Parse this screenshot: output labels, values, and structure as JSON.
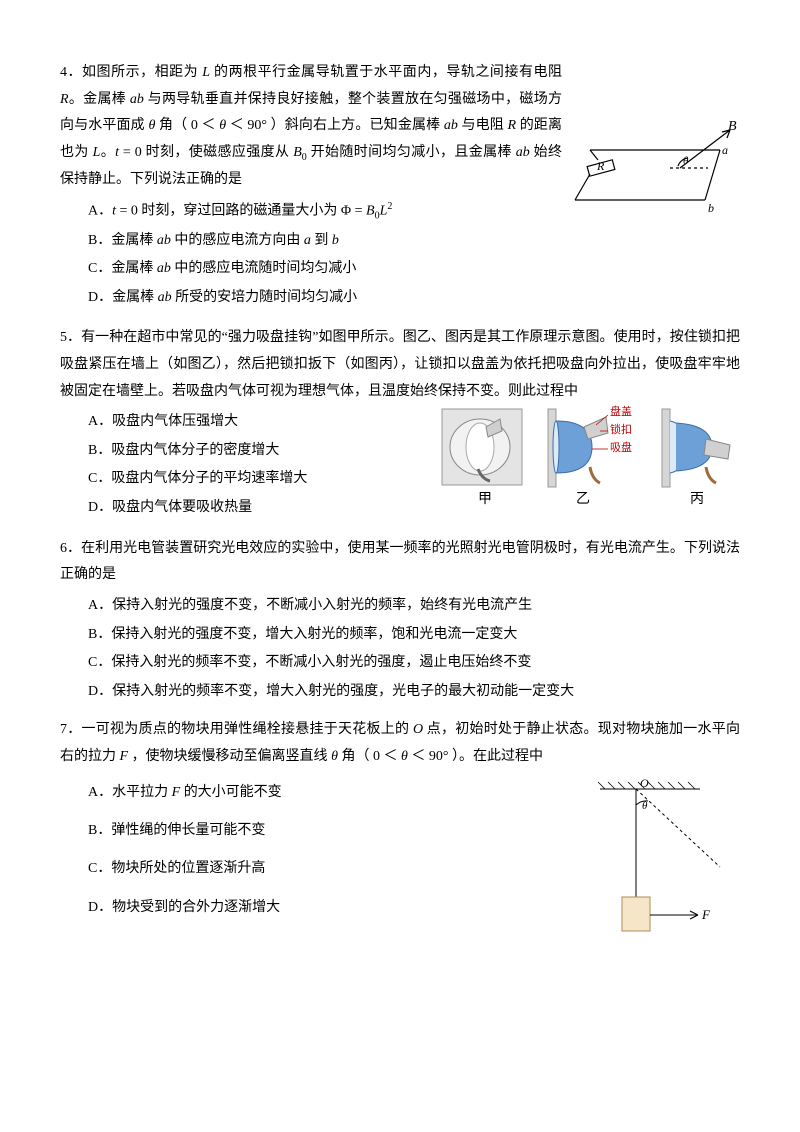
{
  "q4": {
    "num": "4．",
    "body": "如图所示，相距为 <span class='italic'>L</span> 的两根平行金属导轨置于水平面内，导轨之间接有电阻 <span class='italic'>R</span>。金属棒 <span class='italic'>ab</span> 与两导轨垂直并保持良好接触，整个装置放在匀强磁场中，磁场方向与水平面成 <span class='italic'>θ</span> 角（ 0 ＜ <span class='italic'>θ</span> ＜ 90° ）斜向右上方。已知金属棒 <span class='italic'>ab</span> 与电阻 <span class='italic'>R</span> 的距离也为 <span class='italic'>L</span>。<span class='italic'>t</span> = 0 时刻，使磁感应强度从 <span class='italic'>B</span><sub>0</sub> 开始随时间均匀减小，且金属棒 <span class='italic'>ab</span> 始终保持静止。下列说法正确的是",
    "A": "A．<span class='italic'>t</span> = 0 时刻，穿过回路的磁通量大小为 Φ = <span class='italic'>B</span><sub>0</sub><span class='italic'>L</span><sup>2</sup>",
    "B": "B．金属棒 <span class='italic'>ab</span> 中的感应电流方向由 <span class='italic'>a</span> 到 <span class='italic'>b</span>",
    "C": "C．金属棒 <span class='italic'>ab</span> 中的感应电流随时间均匀减小",
    "D": "D．金属棒 <span class='italic'>ab</span> 所受的安培力随时间均匀减小"
  },
  "q5": {
    "num": "5．",
    "body": "有一种在超市中常见的“强力吸盘挂钩”如图甲所示。图乙、图丙是其工作原理示意图。使用时，按住锁扣把吸盘紧压在墙上（如图乙），然后把锁扣扳下（如图丙），让锁扣以盘盖为依托把吸盘向外拉出，使吸盘牢牢地被固定在墙壁上。若吸盘内气体可视为理想气体，且温度始终保持不变。则此过程中",
    "A": "A．吸盘内气体压强增大",
    "B": "B．吸盘内气体分子的密度增大",
    "C": "C．吸盘内气体分子的平均速率增大",
    "D": "D．吸盘内气体要吸收热量",
    "labels": {
      "jia": "甲",
      "yi": "乙",
      "bing": "丙",
      "pan": "盘盖",
      "suo": "锁扣",
      "xi": "吸盘"
    }
  },
  "q6": {
    "num": "6．",
    "body": "在利用光电管装置研究光电效应的实验中，使用某一频率的光照射光电管阴极时，有光电流产生。下列说法正确的是",
    "A": "A．保持入射光的强度不变，不断减小入射光的频率，始终有光电流产生",
    "B": "B．保持入射光的强度不变，增大入射光的频率，饱和光电流一定变大",
    "C": "C．保持入射光的频率不变，不断减小入射光的强度，遏止电压始终不变",
    "D": "D．保持入射光的频率不变，增大入射光的强度，光电子的最大初动能一定变大"
  },
  "q7": {
    "num": "7．",
    "body": "一可视为质点的物块用弹性绳栓接悬挂于天花板上的 <span class='italic'>O</span> 点，初始时处于静止状态。现对物块施加一水平向右的拉力 <span class='italic'>F</span> ，使物块缓慢移动至偏离竖直线 <span class='italic'>θ</span> 角（ 0 ＜ <span class='italic'>θ</span> ＜ 90° ）。在此过程中",
    "A": "A．水平拉力 <span class='italic'>F</span> 的大小可能不变",
    "B": "B．弹性绳的伸长量可能不变",
    "C": "C．物块所处的位置逐渐升高",
    "D": "D．物块受到的合外力逐渐增大"
  },
  "colors": {
    "line": "#000000",
    "rail": "#000000",
    "cup_photo_bg": "#dcdcdc",
    "cup_blue": "#5a8fc8",
    "cup_bracket": "#b0b0b0",
    "wall": "#c0c0c0",
    "label_red": "#c00000",
    "block_fill": "#f5e6c8",
    "block_stroke": "#b08d57"
  }
}
